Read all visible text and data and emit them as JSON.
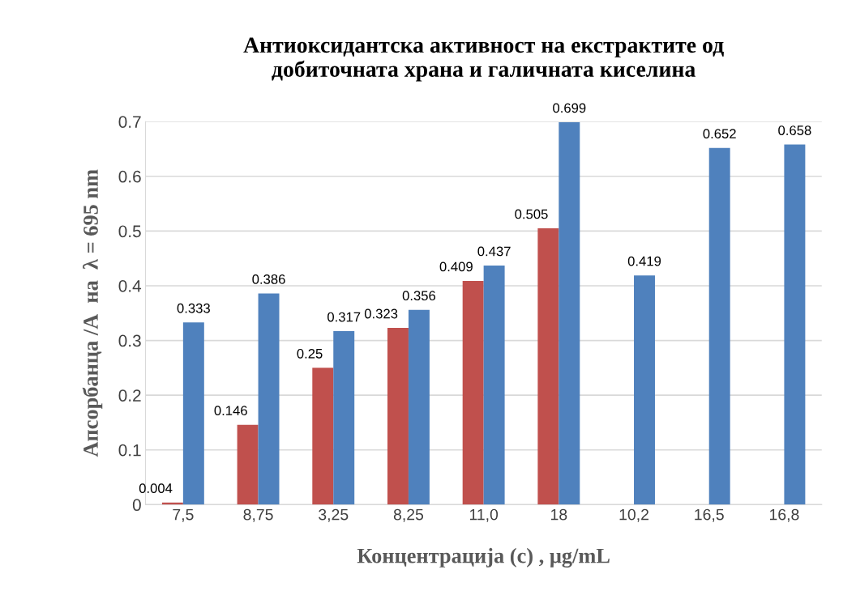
{
  "chart_data": {
    "type": "bar",
    "title": "Антиоксидантска активност на екстрактите од\nдобиточната храна и галичната киселина",
    "xlabel": "Концентрација (c) , μg/mL",
    "ylabel": "Апсорбанца /А  на  λ = 695 nm",
    "categories": [
      "7,5",
      "8,75",
      "3,25",
      "8,25",
      "11,0",
      "18",
      "10,2",
      "16,5",
      "16,8"
    ],
    "series": [
      {
        "color": "#c0504d",
        "values": [
          0.004,
          0.146,
          0.25,
          0.323,
          0.409,
          0.505,
          null,
          null,
          null
        ]
      },
      {
        "color": "#4f81bd",
        "values": [
          0.333,
          0.386,
          0.317,
          0.356,
          0.437,
          0.699,
          0.419,
          0.652,
          0.658
        ]
      }
    ],
    "ylim": [
      0,
      0.7
    ],
    "yticks": [
      0,
      0.1,
      0.2,
      0.3,
      0.4,
      0.5,
      0.6,
      0.7
    ],
    "grid": "y",
    "data_labels": true
  }
}
